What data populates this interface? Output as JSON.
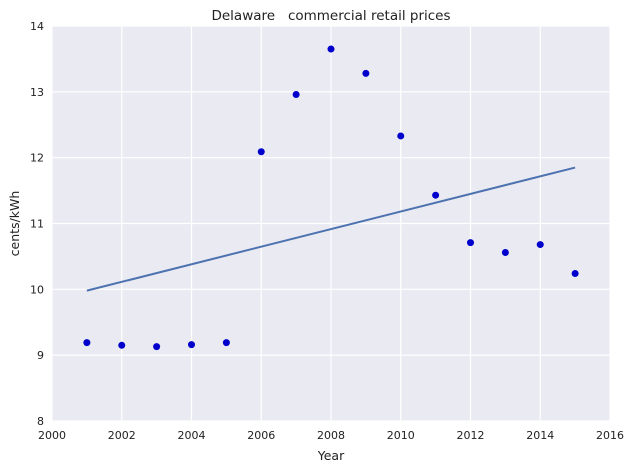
{
  "chart_data": {
    "type": "scatter",
    "title": "Delaware   commercial retail prices",
    "xlabel": "Year",
    "ylabel": "cents/kWh",
    "xlim": [
      2000,
      2016
    ],
    "ylim": [
      8,
      14
    ],
    "xticks": [
      2000,
      2002,
      2004,
      2006,
      2008,
      2010,
      2012,
      2014,
      2016
    ],
    "yticks": [
      8,
      9,
      10,
      11,
      12,
      13,
      14
    ],
    "grid": true,
    "points": [
      {
        "x": 2001,
        "y": 9.19
      },
      {
        "x": 2002,
        "y": 9.15
      },
      {
        "x": 2003,
        "y": 9.13
      },
      {
        "x": 2004,
        "y": 9.16
      },
      {
        "x": 2005,
        "y": 9.19
      },
      {
        "x": 2006,
        "y": 12.09
      },
      {
        "x": 2007,
        "y": 12.96
      },
      {
        "x": 2008,
        "y": 13.65
      },
      {
        "x": 2009,
        "y": 13.28
      },
      {
        "x": 2010,
        "y": 12.33
      },
      {
        "x": 2011,
        "y": 11.43
      },
      {
        "x": 2012,
        "y": 10.71
      },
      {
        "x": 2013,
        "y": 10.56
      },
      {
        "x": 2014,
        "y": 10.68
      },
      {
        "x": 2015,
        "y": 10.24
      }
    ],
    "trend_line": [
      {
        "x": 2001,
        "y": 9.98
      },
      {
        "x": 2015,
        "y": 11.85
      }
    ],
    "colors": {
      "plot_background": "#EAEAF2",
      "grid": "#FFFFFF",
      "points": "#0000CC",
      "trend_line": "#4C72B0"
    }
  }
}
